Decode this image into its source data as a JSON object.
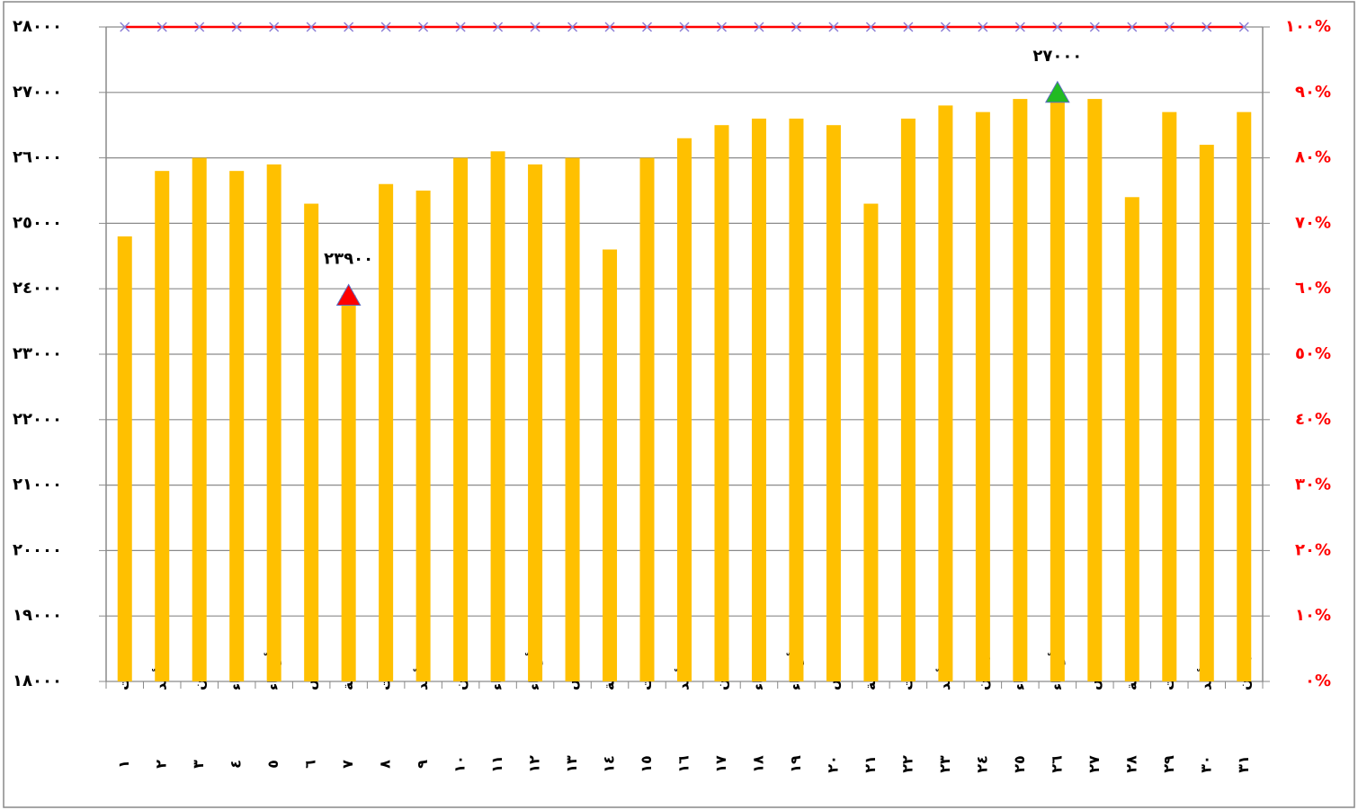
{
  "chart_data": {
    "type": "bar",
    "categories": [
      "السبت",
      "الأحد",
      "الإثنين",
      "الثلاثاء",
      "الأربعاء",
      "الخميس",
      "الجمعة",
      "السبت",
      "الأحد",
      "الإثنين",
      "الثلاثاء",
      "الأربعاء",
      "الخميس",
      "الجمعة",
      "السبت",
      "الأحد",
      "الإثنين",
      "الثلاثاء",
      "الأربعاء",
      "الخميس",
      "الجمعة",
      "السبت",
      "الأحد",
      "الإثنين",
      "الثلاثاء",
      "الأربعاء",
      "الخميس",
      "الجمعة",
      "السبت",
      "الأحد",
      "الإثنين"
    ],
    "category_numbers": [
      "١",
      "٢",
      "٣",
      "٤",
      "٥",
      "٦",
      "٧",
      "٨",
      "٩",
      "١٠",
      "١١",
      "١٢",
      "١٣",
      "١٤",
      "١٥",
      "١٦",
      "١٧",
      "١٨",
      "١٩",
      "٢٠",
      "٢١",
      "٢٢",
      "٢٣",
      "٢٤",
      "٢٥",
      "٢٦",
      "٢٧",
      "٢٨",
      "٢٩",
      "٣٠",
      "٣١"
    ],
    "series": [
      {
        "color": "#ffc000",
        "values": [
          24800,
          25800,
          26000,
          25800,
          25900,
          25300,
          23900,
          25600,
          25500,
          26000,
          26100,
          25900,
          26000,
          24600,
          26000,
          26300,
          26500,
          26600,
          26600,
          26500,
          25300,
          26600,
          26800,
          26700,
          26900,
          27000,
          26900,
          25400,
          26700,
          26200,
          26700
        ]
      },
      {
        "kind": "line",
        "axis": "y2",
        "color": "#ff0000",
        "marker_color": "#8c7fd6",
        "values": [
          100,
          100,
          100,
          100,
          100,
          100,
          100,
          100,
          100,
          100,
          100,
          100,
          100,
          100,
          100,
          100,
          100,
          100,
          100,
          100,
          100,
          100,
          100,
          100,
          100,
          100,
          100,
          100,
          100,
          100,
          100
        ]
      },
      {
        "kind": "triangle",
        "color": "#ff0000",
        "values": [
          null,
          null,
          null,
          null,
          null,
          null,
          23900,
          null,
          null,
          null,
          null,
          null,
          null,
          null,
          null,
          null,
          null,
          null,
          null,
          null,
          null,
          null,
          null,
          null,
          null,
          null,
          null,
          null,
          null,
          null,
          null
        ],
        "value_labels": [
          null,
          null,
          null,
          null,
          null,
          null,
          "٢٣٩٠٠",
          null,
          null,
          null,
          null,
          null,
          null,
          null,
          null,
          null,
          null,
          null,
          null,
          null,
          null,
          null,
          null,
          null,
          null,
          null,
          null,
          null,
          null,
          null,
          null
        ]
      },
      {
        "kind": "triangle",
        "color": "#22bb22",
        "values": [
          null,
          null,
          null,
          null,
          null,
          null,
          null,
          null,
          null,
          null,
          null,
          null,
          null,
          null,
          null,
          null,
          null,
          null,
          null,
          null,
          null,
          null,
          null,
          null,
          null,
          27000,
          null,
          null,
          null,
          null,
          null
        ],
        "value_labels": [
          null,
          null,
          null,
          null,
          null,
          null,
          null,
          null,
          null,
          null,
          null,
          null,
          null,
          null,
          null,
          null,
          null,
          null,
          null,
          null,
          null,
          null,
          null,
          null,
          null,
          "٢٧٠٠٠",
          null,
          null,
          null,
          null,
          null
        ]
      }
    ],
    "ylim": [
      18000,
      28000
    ],
    "yticks": [
      {
        "value": 18000,
        "label": "١٨٠٠٠"
      },
      {
        "value": 19000,
        "label": "١٩٠٠٠"
      },
      {
        "value": 20000,
        "label": "٢٠٠٠٠"
      },
      {
        "value": 21000,
        "label": "٢١٠٠٠"
      },
      {
        "value": 22000,
        "label": "٢٢٠٠٠"
      },
      {
        "value": 23000,
        "label": "٢٣٠٠٠"
      },
      {
        "value": 24000,
        "label": "٢٤٠٠٠"
      },
      {
        "value": 25000,
        "label": "٢٥٠٠٠"
      },
      {
        "value": 26000,
        "label": "٢٦٠٠٠"
      },
      {
        "value": 27000,
        "label": "٢٧٠٠٠"
      },
      {
        "value": 28000,
        "label": "٢٨٠٠٠"
      }
    ],
    "y2lim": [
      0,
      100
    ],
    "y2ticks": [
      {
        "value": 0,
        "label": "٠%"
      },
      {
        "value": 10,
        "label": "١٠%"
      },
      {
        "value": 20,
        "label": "٢٠%"
      },
      {
        "value": 30,
        "label": "٣٠%"
      },
      {
        "value": 40,
        "label": "٤٠%"
      },
      {
        "value": 50,
        "label": "٥٠%"
      },
      {
        "value": 60,
        "label": "٦٠%"
      },
      {
        "value": 70,
        "label": "٧٠%"
      },
      {
        "value": 80,
        "label": "٨٠%"
      },
      {
        "value": 90,
        "label": "٩٠%"
      },
      {
        "value": 100,
        "label": "١٠٠%"
      }
    ],
    "y2_color": "#ff0000",
    "grid": true
  }
}
